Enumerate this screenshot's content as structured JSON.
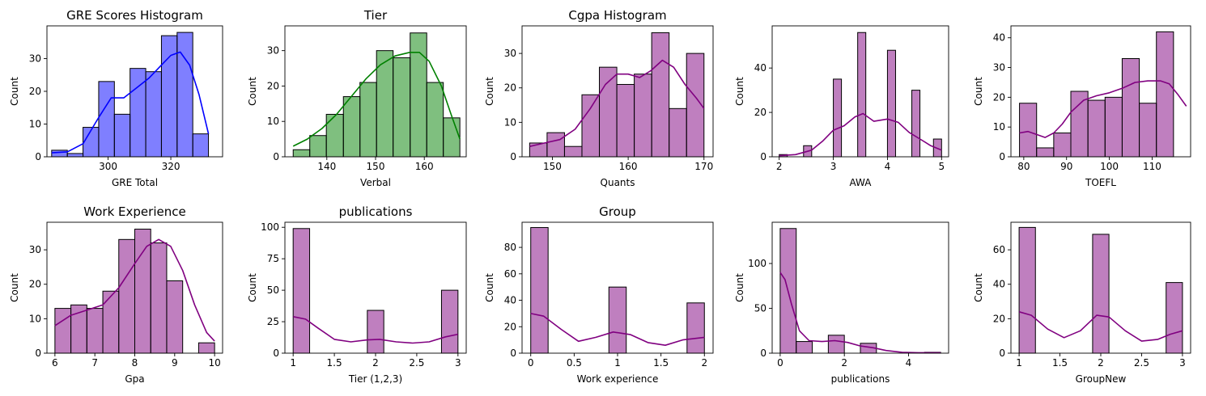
{
  "chart_data": [
    {
      "type": "bar",
      "title": "GRE Scores Histogram",
      "xlabel": "GRE Total",
      "ylabel": "Count",
      "color": "#0000ff",
      "kde_color": "#0000ff",
      "xlim": [
        280.5,
        336.5
      ],
      "ylim": [
        0,
        40
      ],
      "xticks": [
        300,
        320
      ],
      "yticks": [
        0,
        10,
        20,
        30
      ],
      "bins": [
        [
          282,
          287,
          2
        ],
        [
          287,
          292,
          1
        ],
        [
          292,
          297,
          9
        ],
        [
          297,
          302,
          23
        ],
        [
          302,
          307,
          13
        ],
        [
          307,
          312,
          27
        ],
        [
          312,
          317,
          26
        ],
        [
          317,
          322,
          37
        ],
        [
          322,
          327,
          38
        ],
        [
          327,
          332,
          7
        ]
      ],
      "kde": [
        [
          282,
          1.2
        ],
        [
          287,
          1.5
        ],
        [
          292,
          4
        ],
        [
          297,
          12
        ],
        [
          301,
          18
        ],
        [
          305,
          18
        ],
        [
          309,
          21
        ],
        [
          313,
          24
        ],
        [
          317,
          28
        ],
        [
          320,
          31
        ],
        [
          323,
          32
        ],
        [
          326,
          28
        ],
        [
          329,
          19
        ],
        [
          332,
          7
        ]
      ]
    },
    {
      "type": "bar",
      "title": "Tier",
      "xlabel": "Verbal",
      "ylabel": "Count",
      "color": "#008000",
      "kde_color": "#008000",
      "xlim": [
        131.4,
        168.6
      ],
      "ylim": [
        0,
        37
      ],
      "xticks": [
        140,
        150,
        160
      ],
      "yticks": [
        0,
        10,
        20,
        30
      ],
      "bins": [
        [
          133.1,
          136.5,
          2
        ],
        [
          136.5,
          139.9,
          6
        ],
        [
          139.9,
          143.4,
          12
        ],
        [
          143.4,
          146.8,
          17
        ],
        [
          146.8,
          150.2,
          21
        ],
        [
          150.2,
          153.6,
          30
        ],
        [
          153.6,
          157.1,
          28
        ],
        [
          157.1,
          160.5,
          35
        ],
        [
          160.5,
          163.9,
          21
        ],
        [
          163.9,
          167.3,
          11
        ]
      ],
      "kde": [
        [
          133.1,
          3
        ],
        [
          136,
          5
        ],
        [
          139,
          8
        ],
        [
          142,
          12
        ],
        [
          145,
          17
        ],
        [
          148,
          22
        ],
        [
          151,
          26
        ],
        [
          154,
          28.5
        ],
        [
          157,
          29.5
        ],
        [
          159,
          29.5
        ],
        [
          161,
          27
        ],
        [
          163.5,
          20
        ],
        [
          165.5,
          12
        ],
        [
          167.3,
          5
        ]
      ]
    },
    {
      "type": "bar",
      "title": "Cgpa Histogram",
      "xlabel": "Quants",
      "ylabel": "Count",
      "color": "#800080",
      "kde_color": "#800080",
      "xlim": [
        146,
        171.2
      ],
      "ylim": [
        0,
        38
      ],
      "xticks": [
        150,
        160,
        170
      ],
      "yticks": [
        0,
        10,
        20,
        30
      ],
      "bins": [
        [
          147,
          149.3,
          4
        ],
        [
          149.3,
          151.6,
          7
        ],
        [
          151.6,
          153.9,
          3
        ],
        [
          153.9,
          156.2,
          18
        ],
        [
          156.2,
          158.5,
          26
        ],
        [
          158.5,
          160.8,
          21
        ],
        [
          160.8,
          163.1,
          24
        ],
        [
          163.1,
          165.4,
          36
        ],
        [
          165.4,
          167.7,
          14
        ],
        [
          167.7,
          170,
          30
        ]
      ],
      "kde": [
        [
          147,
          3
        ],
        [
          149,
          4
        ],
        [
          151,
          5
        ],
        [
          153,
          8
        ],
        [
          155,
          14
        ],
        [
          157,
          21
        ],
        [
          158.5,
          24
        ],
        [
          160,
          24
        ],
        [
          161.5,
          23
        ],
        [
          163,
          25
        ],
        [
          164.5,
          28
        ],
        [
          166,
          26
        ],
        [
          167.5,
          21
        ],
        [
          169,
          17
        ],
        [
          170,
          14
        ]
      ]
    },
    {
      "type": "bar",
      "title": "",
      "xlabel": "AWA",
      "ylabel": "Count",
      "color": "#800080",
      "kde_color": "#800080",
      "xlim": [
        1.87,
        5.13
      ],
      "ylim": [
        0,
        59
      ],
      "xticks": [
        2,
        3,
        4,
        5
      ],
      "yticks": [
        0,
        20,
        40
      ],
      "bins": [
        [
          2,
          2.15,
          1
        ],
        [
          2.45,
          2.6,
          5
        ],
        [
          3,
          3.15,
          35
        ],
        [
          3.45,
          3.6,
          56
        ],
        [
          4,
          4.15,
          48
        ],
        [
          4.45,
          4.6,
          30
        ],
        [
          4.85,
          5,
          8
        ]
      ],
      "kde": [
        [
          2,
          0.5
        ],
        [
          2.3,
          1
        ],
        [
          2.6,
          3
        ],
        [
          2.8,
          7
        ],
        [
          3,
          12
        ],
        [
          3.2,
          14
        ],
        [
          3.4,
          18
        ],
        [
          3.55,
          19.5
        ],
        [
          3.75,
          16
        ],
        [
          4,
          17
        ],
        [
          4.2,
          15.5
        ],
        [
          4.4,
          11
        ],
        [
          4.6,
          8
        ],
        [
          4.8,
          5
        ],
        [
          5,
          3
        ]
      ]
    },
    {
      "type": "bar",
      "title": "",
      "xlabel": "TOEFL",
      "ylabel": "Count",
      "color": "#800080",
      "kde_color": "#800080",
      "xlim": [
        77,
        119
      ],
      "ylim": [
        0,
        44
      ],
      "xticks": [
        80,
        90,
        100,
        110
      ],
      "yticks": [
        0,
        10,
        20,
        30,
        40
      ],
      "bins": [
        [
          79,
          83,
          18
        ],
        [
          83,
          87,
          3
        ],
        [
          87,
          91,
          8
        ],
        [
          91,
          95,
          22
        ],
        [
          95,
          99,
          19
        ],
        [
          99,
          103,
          20
        ],
        [
          103,
          107,
          33
        ],
        [
          107,
          111,
          18
        ],
        [
          111,
          115,
          42
        ],
        [
          115,
          118,
          0
        ]
      ],
      "kde": [
        [
          79,
          8
        ],
        [
          81,
          8.5
        ],
        [
          83,
          7.5
        ],
        [
          85,
          6.5
        ],
        [
          87,
          8
        ],
        [
          89,
          11
        ],
        [
          91,
          15
        ],
        [
          94,
          19
        ],
        [
          97,
          20.5
        ],
        [
          100,
          21.5
        ],
        [
          103,
          23
        ],
        [
          106,
          25
        ],
        [
          109,
          25.5
        ],
        [
          112,
          25.5
        ],
        [
          114,
          24.5
        ],
        [
          116,
          21
        ],
        [
          118,
          17
        ]
      ]
    },
    {
      "type": "bar",
      "title": "Work Experience",
      "xlabel": "Gpa",
      "ylabel": "Count",
      "color": "#800080",
      "kde_color": "#800080",
      "xlim": [
        5.8,
        10.2
      ],
      "ylim": [
        0,
        38
      ],
      "xticks": [
        6,
        7,
        8,
        9,
        10
      ],
      "yticks": [
        0,
        10,
        20,
        30
      ],
      "bins": [
        [
          6,
          6.4,
          13
        ],
        [
          6.4,
          6.8,
          14
        ],
        [
          6.8,
          7.2,
          13
        ],
        [
          7.2,
          7.6,
          18
        ],
        [
          7.6,
          8,
          33
        ],
        [
          8,
          8.4,
          36
        ],
        [
          8.4,
          8.8,
          32
        ],
        [
          8.8,
          9.2,
          21
        ],
        [
          9.2,
          9.6,
          0
        ],
        [
          9.6,
          10,
          3
        ]
      ],
      "kde": [
        [
          6,
          8
        ],
        [
          6.4,
          11
        ],
        [
          6.8,
          12.5
        ],
        [
          7.2,
          14
        ],
        [
          7.6,
          19
        ],
        [
          8,
          26
        ],
        [
          8.3,
          31
        ],
        [
          8.6,
          33
        ],
        [
          8.9,
          31
        ],
        [
          9.2,
          24
        ],
        [
          9.5,
          14
        ],
        [
          9.8,
          6
        ],
        [
          10,
          3.5
        ]
      ]
    },
    {
      "type": "bar",
      "title": "publications",
      "xlabel": "Tier (1,2,3)",
      "ylabel": "Count",
      "color": "#800080",
      "kde_color": "#800080",
      "xlim": [
        0.9,
        3.1
      ],
      "ylim": [
        0,
        104
      ],
      "xticks": [
        1.0,
        1.5,
        2.0,
        2.5,
        3.0
      ],
      "yticks": [
        0,
        25,
        50,
        75,
        100
      ],
      "bins": [
        [
          1,
          1.2,
          99
        ],
        [
          1.8,
          2,
          0
        ],
        [
          1.9,
          2.1,
          34
        ],
        [
          2.8,
          3,
          50
        ]
      ],
      "kde": [
        [
          1,
          29
        ],
        [
          1.15,
          27
        ],
        [
          1.3,
          20
        ],
        [
          1.5,
          11
        ],
        [
          1.7,
          9
        ],
        [
          1.9,
          10.5
        ],
        [
          2.05,
          11
        ],
        [
          2.25,
          9
        ],
        [
          2.45,
          8
        ],
        [
          2.65,
          9
        ],
        [
          2.85,
          13
        ],
        [
          3,
          15
        ]
      ]
    },
    {
      "type": "bar",
      "title": "Group",
      "xlabel": "Work experience",
      "ylabel": "Count",
      "color": "#800080",
      "kde_color": "#800080",
      "xlim": [
        -0.1,
        2.1
      ],
      "ylim": [
        0,
        99
      ],
      "xticks": [
        0.0,
        0.5,
        1.0,
        1.5,
        2.0
      ],
      "yticks": [
        0,
        20,
        40,
        60,
        80
      ],
      "bins": [
        [
          0,
          0.2,
          95
        ],
        [
          0.9,
          1.1,
          50
        ],
        [
          1.8,
          2,
          38
        ]
      ],
      "kde": [
        [
          0,
          30
        ],
        [
          0.15,
          28
        ],
        [
          0.35,
          18
        ],
        [
          0.55,
          9
        ],
        [
          0.75,
          12
        ],
        [
          0.95,
          16
        ],
        [
          1.15,
          14
        ],
        [
          1.35,
          8
        ],
        [
          1.55,
          6
        ],
        [
          1.75,
          10
        ],
        [
          2,
          12
        ]
      ]
    },
    {
      "type": "bar",
      "title": "",
      "xlabel": "publications",
      "ylabel": "Count",
      "color": "#800080",
      "kde_color": "#800080",
      "xlim": [
        -0.25,
        5.25
      ],
      "ylim": [
        0,
        146
      ],
      "xticks": [
        0,
        2,
        4
      ],
      "yticks": [
        0,
        50,
        100
      ],
      "bins": [
        [
          0,
          0.5,
          139
        ],
        [
          0.5,
          1,
          13
        ],
        [
          1,
          1.5,
          0
        ],
        [
          1.5,
          2,
          20
        ],
        [
          2,
          2.5,
          0
        ],
        [
          2.5,
          3,
          11
        ],
        [
          3,
          3.5,
          0
        ],
        [
          4.5,
          5,
          1
        ]
      ],
      "kde": [
        [
          0,
          90
        ],
        [
          0.15,
          82
        ],
        [
          0.35,
          55
        ],
        [
          0.6,
          25
        ],
        [
          0.9,
          14
        ],
        [
          1.3,
          13
        ],
        [
          1.7,
          14
        ],
        [
          2.1,
          12
        ],
        [
          2.5,
          8
        ],
        [
          2.9,
          6
        ],
        [
          3.3,
          3
        ],
        [
          3.8,
          1
        ],
        [
          4.3,
          0.5
        ],
        [
          5,
          0.5
        ]
      ]
    },
    {
      "type": "bar",
      "title": "",
      "xlabel": "GroupNew",
      "ylabel": "Count",
      "color": "#800080",
      "kde_color": "#800080",
      "xlim": [
        0.9,
        3.1
      ],
      "ylim": [
        0,
        76
      ],
      "xticks": [
        1.0,
        1.5,
        2.0,
        2.5,
        3.0
      ],
      "yticks": [
        0,
        20,
        40,
        60
      ],
      "bins": [
        [
          1,
          1.2,
          73
        ],
        [
          1.8,
          2,
          0
        ],
        [
          1.9,
          2.1,
          69
        ],
        [
          2.8,
          3,
          41
        ]
      ],
      "kde": [
        [
          1,
          24
        ],
        [
          1.15,
          22
        ],
        [
          1.35,
          14
        ],
        [
          1.55,
          9
        ],
        [
          1.75,
          13
        ],
        [
          1.95,
          22
        ],
        [
          2.1,
          21
        ],
        [
          2.3,
          13
        ],
        [
          2.5,
          7
        ],
        [
          2.7,
          8
        ],
        [
          2.85,
          11
        ],
        [
          3,
          13
        ]
      ]
    }
  ]
}
